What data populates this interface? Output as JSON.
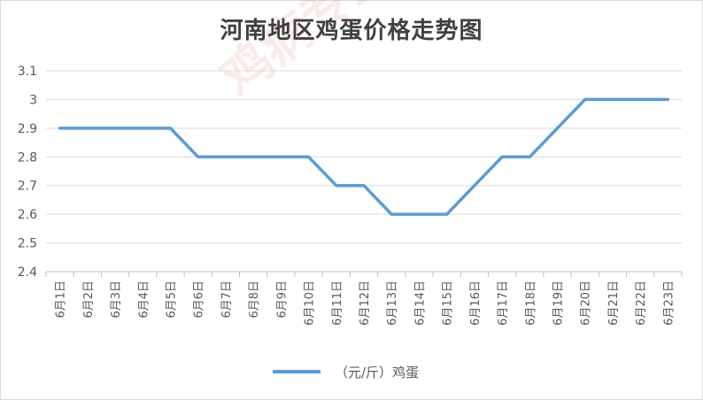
{
  "chart_data": {
    "type": "line",
    "title": "河南地区鸡蛋价格走势图",
    "categories": [
      "6月1日",
      "6月2日",
      "6月3日",
      "6月4日",
      "6月5日",
      "6月6日",
      "6月7日",
      "6月8日",
      "6月9日",
      "6月10日",
      "6月11日",
      "6月12日",
      "6月13日",
      "6月14日",
      "6月15日",
      "6月16日",
      "6月17日",
      "6月18日",
      "6月19日",
      "6月20日",
      "6月21日",
      "6月22日",
      "6月23日"
    ],
    "series": [
      {
        "name": "（元/斤）鸡蛋",
        "values": [
          2.9,
          2.9,
          2.9,
          2.9,
          2.9,
          2.8,
          2.8,
          2.8,
          2.8,
          2.8,
          2.7,
          2.7,
          2.6,
          2.6,
          2.6,
          2.7,
          2.8,
          2.8,
          2.9,
          3.0,
          3.0,
          3.0,
          3.0
        ]
      }
    ],
    "yticks": [
      "2.4",
      "2.5",
      "2.6",
      "2.7",
      "2.8",
      "2.9",
      "3",
      "3.1"
    ],
    "ylim": [
      2.4,
      3.1
    ],
    "grid": true,
    "legend_position": "bottom",
    "line_color": "#5b9bd5"
  },
  "watermark": "鸡病专业网 www.jbzyw.com"
}
